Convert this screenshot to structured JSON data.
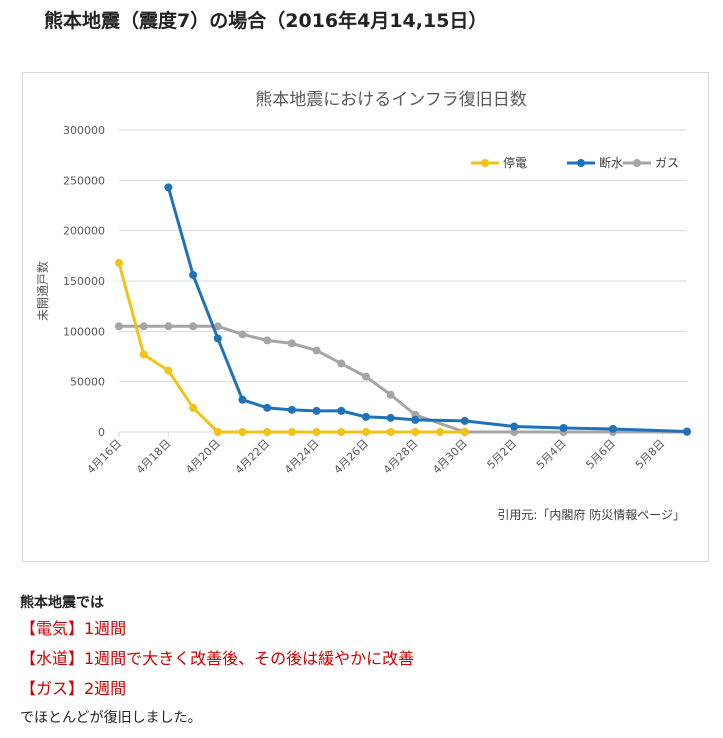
{
  "page": {
    "heading": "熊本地震（震度7）の場合（2016年4月14,15日）",
    "intro": "熊本地震では",
    "lines": [
      "【電気】1週間",
      "【水道】1週間で大きく改善後、その後は緩やかに改善",
      "【ガス】2週間"
    ],
    "closing": "でほとんどが復旧しました。"
  },
  "chart_data": {
    "type": "line",
    "title": "熊本地震におけるインフラ復旧日数",
    "ylabel": "未開通戸数",
    "xlabel": "",
    "source": "引用元:「内閣府 防災情報ページ」",
    "x": [
      "4月16日",
      "4月17日",
      "4月18日",
      "4月19日",
      "4月20日",
      "4月21日",
      "4月22日",
      "4月23日",
      "4月24日",
      "4月25日",
      "4月26日",
      "4月27日",
      "4月28日",
      "4月29日",
      "4月30日",
      "5月1日",
      "5月2日",
      "5月3日",
      "5月4日",
      "5月5日",
      "5月6日",
      "5月7日",
      "5月8日",
      "5月9日"
    ],
    "tick_labels": [
      "4月16日",
      "4月18日",
      "4月20日",
      "4月22日",
      "4月24日",
      "4月26日",
      "4月28日",
      "4月30日",
      "5月2日",
      "5月4日",
      "5月6日",
      "5月8日"
    ],
    "ylim": [
      0,
      300000
    ],
    "yticks": [
      "0",
      "50000",
      "100000",
      "150000",
      "200000",
      "250000",
      "300000"
    ],
    "grid": true,
    "legend_position": "top-right",
    "series": [
      {
        "name": "停電",
        "color": "#f2c219",
        "points": [
          [
            "4月16日",
            168000
          ],
          [
            "4月17日",
            77000
          ],
          [
            "4月18日",
            61000
          ],
          [
            "4月19日",
            24000
          ],
          [
            "4月20日",
            0
          ],
          [
            "4月21日",
            0
          ],
          [
            "4月22日",
            0
          ],
          [
            "4月23日",
            0
          ],
          [
            "4月24日",
            0
          ],
          [
            "4月25日",
            0
          ],
          [
            "4月26日",
            0
          ],
          [
            "4月27日",
            0
          ],
          [
            "4月28日",
            0
          ],
          [
            "4月29日",
            0
          ],
          [
            "4月30日",
            0
          ]
        ]
      },
      {
        "name": "断水",
        "color": "#1f72b8",
        "points": [
          [
            "4月18日",
            243000
          ],
          [
            "4月19日",
            156000
          ],
          [
            "4月20日",
            93000
          ],
          [
            "4月21日",
            32000
          ],
          [
            "4月22日",
            24000
          ],
          [
            "4月23日",
            22000
          ],
          [
            "4月24日",
            21000
          ],
          [
            "4月25日",
            21000
          ],
          [
            "4月26日",
            15000
          ],
          [
            "4月27日",
            14000
          ],
          [
            "4月28日",
            12000
          ],
          [
            "4月30日",
            11000
          ],
          [
            "5月2日",
            5500
          ],
          [
            "5月4日",
            4000
          ],
          [
            "5月6日",
            3000
          ],
          [
            "5月9日",
            500
          ]
        ]
      },
      {
        "name": "ガス",
        "color": "#a5a5a5",
        "points": [
          [
            "4月16日",
            105000
          ],
          [
            "4月17日",
            105000
          ],
          [
            "4月18日",
            105000
          ],
          [
            "4月19日",
            105000
          ],
          [
            "4月20日",
            105000
          ],
          [
            "4月21日",
            97000
          ],
          [
            "4月22日",
            91000
          ],
          [
            "4月23日",
            88000
          ],
          [
            "4月24日",
            81000
          ],
          [
            "4月25日",
            68000
          ],
          [
            "4月26日",
            55000
          ],
          [
            "4月27日",
            37000
          ],
          [
            "4月28日",
            17000
          ],
          [
            "4月30日",
            0
          ],
          [
            "5月2日",
            0
          ],
          [
            "5月4日",
            0
          ],
          [
            "5月6日",
            0
          ],
          [
            "5月9日",
            0
          ]
        ]
      }
    ]
  }
}
